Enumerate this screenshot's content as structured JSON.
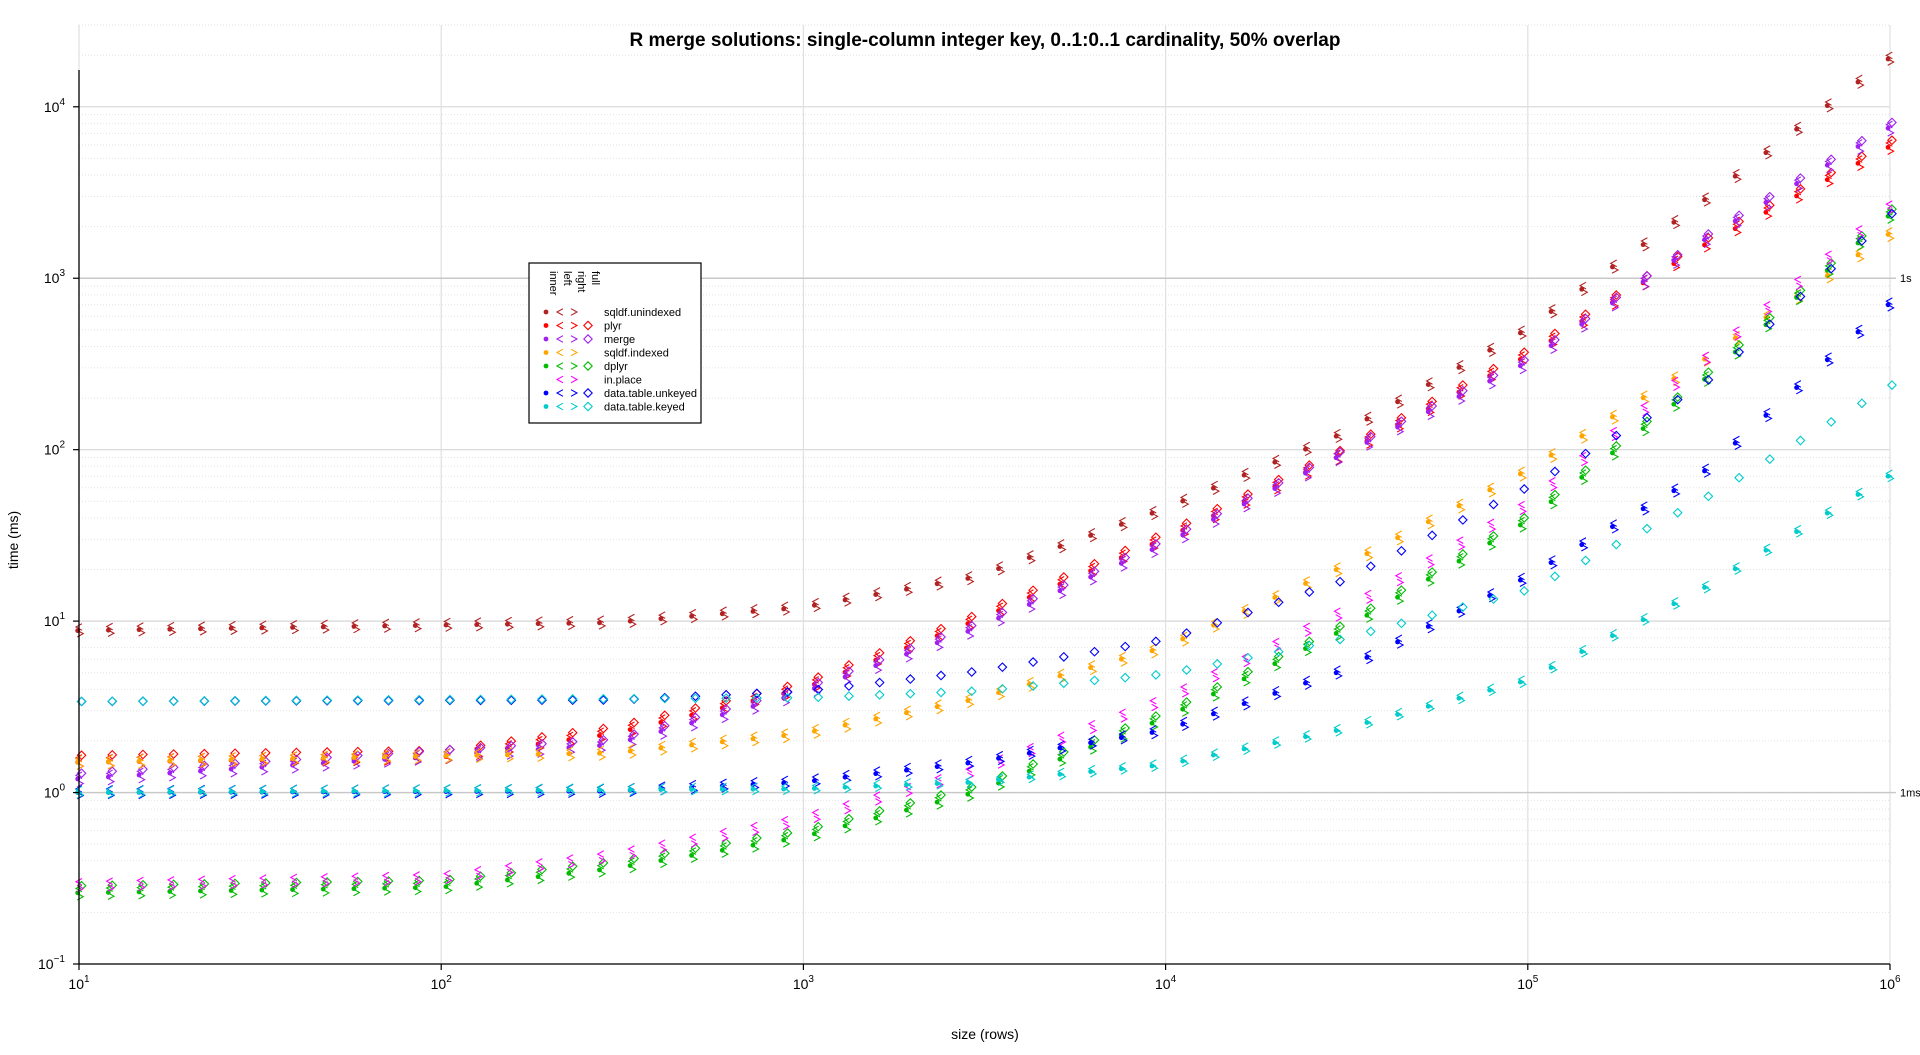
{
  "chart_data": {
    "type": "scatter",
    "title": "R merge solutions: single-column integer key, 0..1:0..1 cardinality, 50% overlap",
    "xlabel": "size (rows)",
    "ylabel": "time (ms)",
    "x_scale": "log10",
    "y_scale": "log10",
    "xlim": [
      10,
      1000000
    ],
    "ylim": [
      0.1,
      30000
    ],
    "x_major_ticks": [
      {
        "value": 10,
        "base": "10",
        "exp": "1"
      },
      {
        "value": 100,
        "base": "10",
        "exp": "2"
      },
      {
        "value": 1000,
        "base": "10",
        "exp": "3"
      },
      {
        "value": 10000,
        "base": "10",
        "exp": "4"
      },
      {
        "value": 100000,
        "base": "10",
        "exp": "5"
      },
      {
        "value": 1000000,
        "base": "10",
        "exp": "6"
      }
    ],
    "y_major_ticks": [
      {
        "value": 0.1,
        "base": "10",
        "exp": "−1"
      },
      {
        "value": 1,
        "base": "10",
        "exp": "0"
      },
      {
        "value": 10,
        "base": "10",
        "exp": "1"
      },
      {
        "value": 100,
        "base": "10",
        "exp": "2"
      },
      {
        "value": 1000,
        "base": "10",
        "exp": "3"
      },
      {
        "value": 10000,
        "base": "10",
        "exp": "4"
      }
    ],
    "reference_lines": [
      {
        "value": 1,
        "label": "1ms"
      },
      {
        "value": 1000,
        "label": "1s"
      }
    ],
    "grid": true,
    "legend_placement": "upper-middle",
    "legend_columns": [
      "inner",
      "left",
      "right",
      "full"
    ],
    "join_symbols": {
      "inner": "dot",
      "left": "<",
      "right": ">",
      "full": "diamond"
    },
    "n_points": 60,
    "series": [
      {
        "name": "sqldf.unindexed",
        "color": "#b22222",
        "joins": [
          "inner",
          "left",
          "right"
        ],
        "anchors": [
          [
            10,
            8.8
          ],
          [
            300,
            9.8
          ],
          [
            1000,
            12
          ],
          [
            3000,
            18
          ],
          [
            10000,
            45
          ],
          [
            30000,
            120
          ],
          [
            100000,
            500
          ],
          [
            300000,
            2700
          ],
          [
            1000000,
            19000
          ]
        ],
        "offsets": {
          "inner": 1.0,
          "left": 1.05,
          "right": 0.96
        }
      },
      {
        "name": "plyr",
        "color": "#ff0000",
        "joins": [
          "inner",
          "left",
          "right",
          "full"
        ],
        "anchors": [
          [
            10,
            1.5
          ],
          [
            100,
            1.6
          ],
          [
            300,
            2.2
          ],
          [
            1000,
            4
          ],
          [
            3000,
            10
          ],
          [
            10000,
            30
          ],
          [
            30000,
            90
          ],
          [
            100000,
            350
          ],
          [
            300000,
            1500
          ],
          [
            1000000,
            5800
          ]
        ],
        "offsets": {
          "inner": 1.0,
          "left": 1.06,
          "right": 0.95,
          "full": 1.1
        }
      },
      {
        "name": "merge",
        "color": "#a020f0",
        "joins": [
          "inner",
          "left",
          "right",
          "full"
        ],
        "anchors": [
          [
            10,
            1.2
          ],
          [
            300,
            1.9
          ],
          [
            1000,
            3.8
          ],
          [
            3000,
            9
          ],
          [
            10000,
            28
          ],
          [
            30000,
            90
          ],
          [
            100000,
            320
          ],
          [
            300000,
            1600
          ],
          [
            1000000,
            7500
          ]
        ],
        "offsets": {
          "inner": 1.0,
          "left": 1.05,
          "right": 0.94,
          "full": 1.08
        }
      },
      {
        "name": "sqldf.indexed",
        "color": "#ffa500",
        "joins": [
          "inner",
          "left",
          "right"
        ],
        "anchors": [
          [
            10,
            1.5
          ],
          [
            300,
            1.7
          ],
          [
            1000,
            2.2
          ],
          [
            3000,
            3.5
          ],
          [
            10000,
            7
          ],
          [
            30000,
            20
          ],
          [
            100000,
            75
          ],
          [
            300000,
            320
          ],
          [
            1000000,
            1800
          ]
        ],
        "offsets": {
          "inner": 1.0,
          "left": 1.05,
          "right": 0.95
        }
      },
      {
        "name": "dplyr",
        "color": "#00bb00",
        "joins": [
          "inner",
          "left",
          "right",
          "full"
        ],
        "anchors": [
          [
            10,
            0.26
          ],
          [
            100,
            0.28
          ],
          [
            300,
            0.36
          ],
          [
            1000,
            0.55
          ],
          [
            3000,
            1.0
          ],
          [
            10000,
            2.7
          ],
          [
            30000,
            8.5
          ],
          [
            100000,
            38
          ],
          [
            300000,
            240
          ],
          [
            1000000,
            2300
          ]
        ],
        "offsets": {
          "inner": 1.0,
          "left": 1.06,
          "right": 0.95,
          "full": 1.1
        }
      },
      {
        "name": "in.place",
        "color": "#ff00ff",
        "joins": [
          "left",
          "right"
        ],
        "anchors": [
          [
            10,
            0.29
          ],
          [
            100,
            0.32
          ],
          [
            300,
            0.43
          ],
          [
            1000,
            0.7
          ],
          [
            3000,
            1.35
          ],
          [
            10000,
            3.5
          ],
          [
            30000,
            11
          ],
          [
            100000,
            48
          ],
          [
            300000,
            320
          ],
          [
            1000000,
            2600
          ]
        ],
        "offsets": {
          "left": 1.04,
          "right": 0.95
        }
      },
      {
        "name": "data.table.unkeyed",
        "color": "#0000ff",
        "joins": [
          "inner",
          "left",
          "right",
          "full"
        ],
        "anchors": [
          [
            10,
            1.0
          ],
          [
            300,
            1.02
          ],
          [
            1000,
            1.15
          ],
          [
            3000,
            1.5
          ],
          [
            10000,
            2.3
          ],
          [
            30000,
            5
          ],
          [
            100000,
            18
          ],
          [
            300000,
            70
          ],
          [
            1000000,
            700
          ]
        ],
        "offsets": {
          "inner": 1.0,
          "left": 1.05,
          "right": 0.96,
          "full": 3.4
        }
      },
      {
        "name": "data.table.keyed",
        "color": "#00cccc",
        "joins": [
          "inner",
          "left",
          "right",
          "full"
        ],
        "anchors": [
          [
            10,
            1.0
          ],
          [
            1000,
            1.05
          ],
          [
            3000,
            1.15
          ],
          [
            10000,
            1.45
          ],
          [
            30000,
            2.3
          ],
          [
            100000,
            4.5
          ],
          [
            300000,
            15
          ],
          [
            1000000,
            70
          ]
        ],
        "offsets": {
          "inner": 1.0,
          "left": 1.04,
          "right": 0.97,
          "full": 3.4
        }
      }
    ]
  }
}
